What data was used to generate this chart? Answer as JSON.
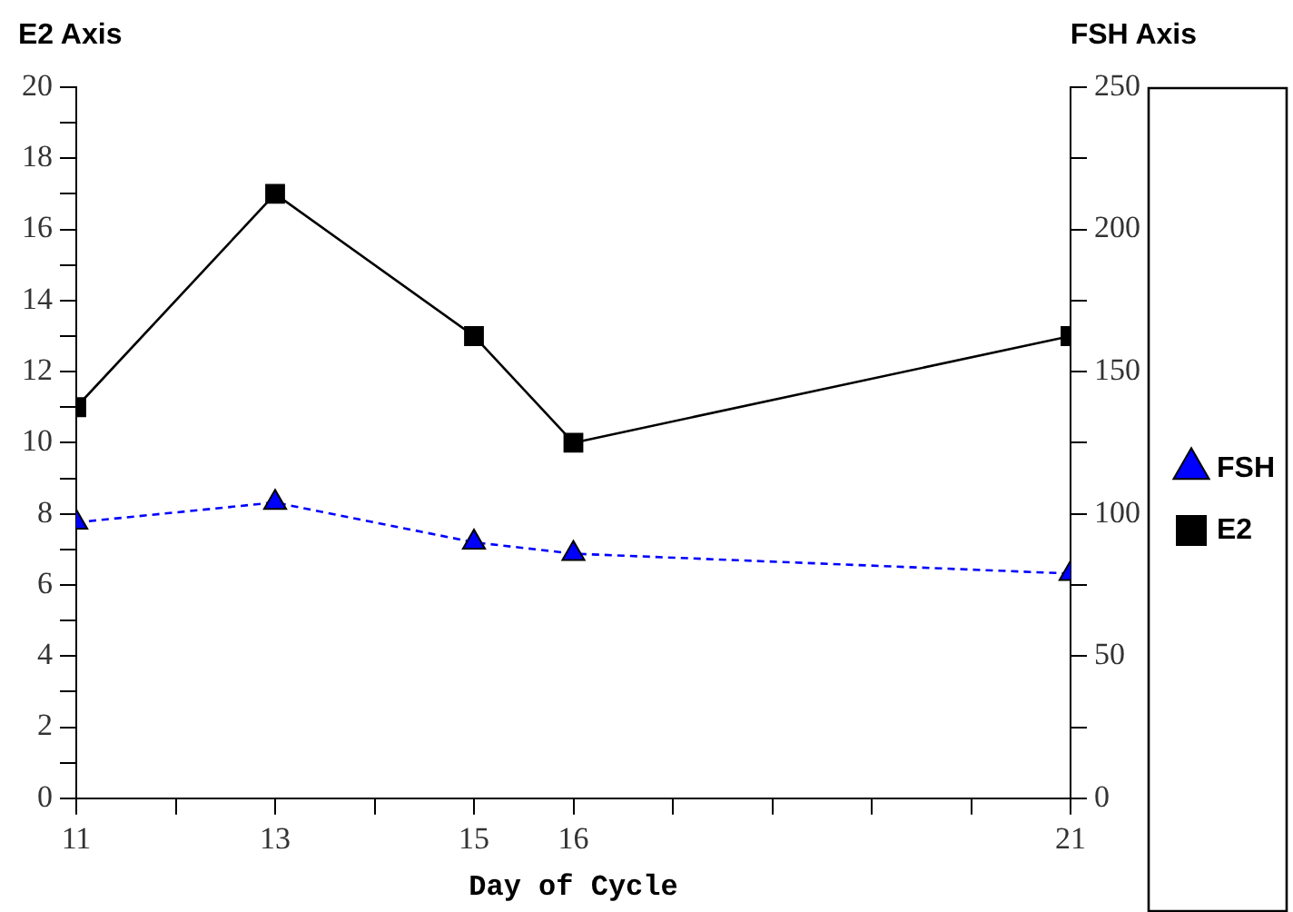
{
  "chart_data": {
    "type": "line",
    "xlabel": "Day of Cycle",
    "ylabel": "E2 Axis",
    "y2label": "FSH Axis",
    "x": [
      11,
      13,
      15,
      16,
      21
    ],
    "xlim": [
      11,
      21
    ],
    "xticks": [
      11,
      {
        "value": 12,
        "label": null
      },
      13,
      {
        "value": 14,
        "label": null
      },
      15,
      16,
      {
        "value": 17,
        "label": null
      },
      {
        "value": 18,
        "label": null
      },
      {
        "value": 19,
        "label": null
      },
      {
        "value": 20,
        "label": null
      },
      21
    ],
    "ylim": [
      0,
      20
    ],
    "yticks": [
      0,
      {
        "value": 1,
        "label": null
      },
      2,
      {
        "value": 3,
        "label": null
      },
      4,
      {
        "value": 5,
        "label": null
      },
      6,
      {
        "value": 7,
        "label": null
      },
      8,
      {
        "value": 9,
        "label": null
      },
      10,
      {
        "value": 11,
        "label": null
      },
      12,
      {
        "value": 13,
        "label": null
      },
      14,
      {
        "value": 15,
        "label": null
      },
      16,
      {
        "value": 17,
        "label": null
      },
      18,
      {
        "value": 19,
        "label": null
      },
      20
    ],
    "y2lim": [
      0,
      250
    ],
    "y2ticks": [
      0,
      {
        "value": 25,
        "label": null
      },
      50,
      {
        "value": 75,
        "label": null
      },
      100,
      {
        "value": 125,
        "label": null
      },
      150,
      {
        "value": 175,
        "label": null
      },
      200,
      {
        "value": 225,
        "label": null
      },
      250
    ],
    "series": [
      {
        "name": "FSH",
        "color": "#0000ff",
        "axis": "y2",
        "marker": "triangle",
        "line_style": "dashed",
        "values": [
          97,
          104,
          90,
          86,
          79
        ]
      },
      {
        "name": "E2",
        "color": "#000000",
        "marker": "square",
        "line_style": "solid",
        "values": [
          11,
          17,
          13,
          10,
          13
        ]
      }
    ],
    "grid": false,
    "legend": "right"
  }
}
